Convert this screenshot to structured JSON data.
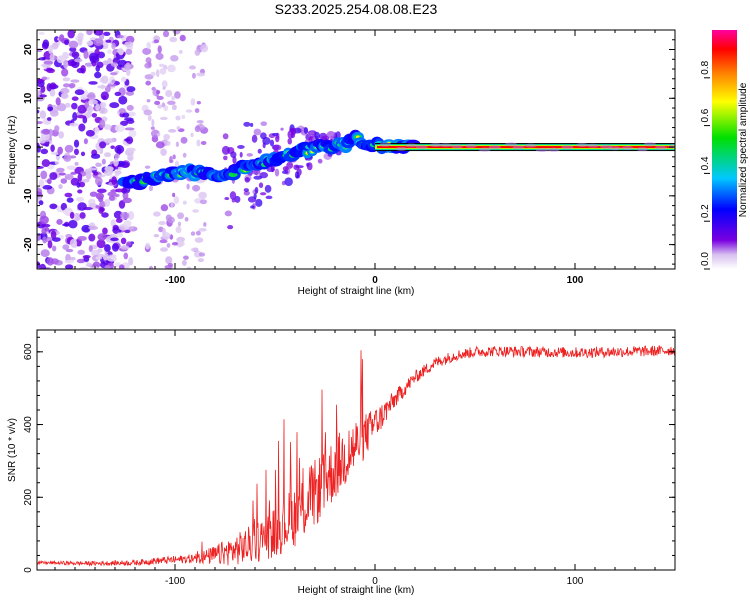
{
  "title": "S233.2025.254.08.08.E23",
  "chart_data": [
    {
      "type": "heatmap",
      "title": "S233.2025.254.08.08.E23",
      "xlabel": "Height of straight line (km)",
      "ylabel": "Frequency (Hz)",
      "xlim": [
        -169,
        150
      ],
      "ylim": [
        -25,
        24
      ],
      "xticks": [
        -100,
        0,
        100
      ],
      "yticks": [
        -20,
        -10,
        0,
        10,
        20
      ],
      "colorbar": {
        "label": "Normalized spectral amplitude",
        "range": [
          0,
          1
        ],
        "ticks": [
          0.0,
          0.2,
          0.4,
          0.6,
          0.8
        ],
        "tick_labels": [
          "0.0",
          "0.2",
          "0.4",
          "0.6",
          "0.8"
        ],
        "colormap": [
          "#ffffff",
          "#d8c0f0",
          "#7a00e0",
          "#0000ff",
          "#00c8ff",
          "#00e000",
          "#ffff00",
          "#ff8000",
          "#ff0000",
          "#ff00a0"
        ]
      },
      "ridge": {
        "x": [
          -125,
          -115,
          -105,
          -95,
          -85,
          -75,
          -65,
          -55,
          -45,
          -38,
          -30,
          -22,
          -15,
          -10,
          -5,
          0,
          5,
          10,
          15,
          20,
          150
        ],
        "y": [
          -7.6,
          -6.8,
          -6.0,
          -5.0,
          -5.5,
          -5.8,
          -4.2,
          -2.8,
          -1.8,
          -1.0,
          0.0,
          0.3,
          0.6,
          1.6,
          1.0,
          0.5,
          0.2,
          0.1,
          0.2,
          0.0,
          0.0
        ]
      },
      "carrier": {
        "x_start": 0,
        "x_end": 150,
        "frequency": 0.0
      }
    },
    {
      "type": "line",
      "xlabel": "Height of straight line (km)",
      "ylabel": "SNR (10 * v/v)",
      "xlim": [
        -169,
        150
      ],
      "ylim": [
        0,
        660
      ],
      "xticks": [
        -100,
        0,
        100
      ],
      "yticks": [
        0,
        200,
        400,
        600
      ],
      "series": [
        {
          "name": "SNR",
          "color": "#ee2222",
          "trend": {
            "x": [
              -169,
              -140,
              -120,
              -110,
              -100,
              -90,
              -80,
              -70,
              -60,
              -50,
              -40,
              -30,
              -20,
              -10,
              0,
              10,
              20,
              30,
              40,
              50,
              60,
              80,
              100,
              120,
              140,
              150
            ],
            "y": [
              20,
              18,
              20,
              25,
              28,
              32,
              40,
              55,
              75,
              105,
              150,
              210,
              280,
              340,
              400,
              470,
              530,
              570,
              590,
              600,
              602,
              600,
              598,
              600,
              602,
              605
            ]
          },
          "noise_amplitude": {
            "x": [
              -169,
              -120,
              -90,
              -75,
              -50,
              -35,
              -20,
              -10,
              0,
              10,
              20,
              40,
              150
            ],
            "y": [
              8,
              15,
              25,
              70,
              140,
              190,
              180,
              160,
              90,
              50,
              35,
              30,
              30
            ]
          }
        }
      ]
    }
  ]
}
